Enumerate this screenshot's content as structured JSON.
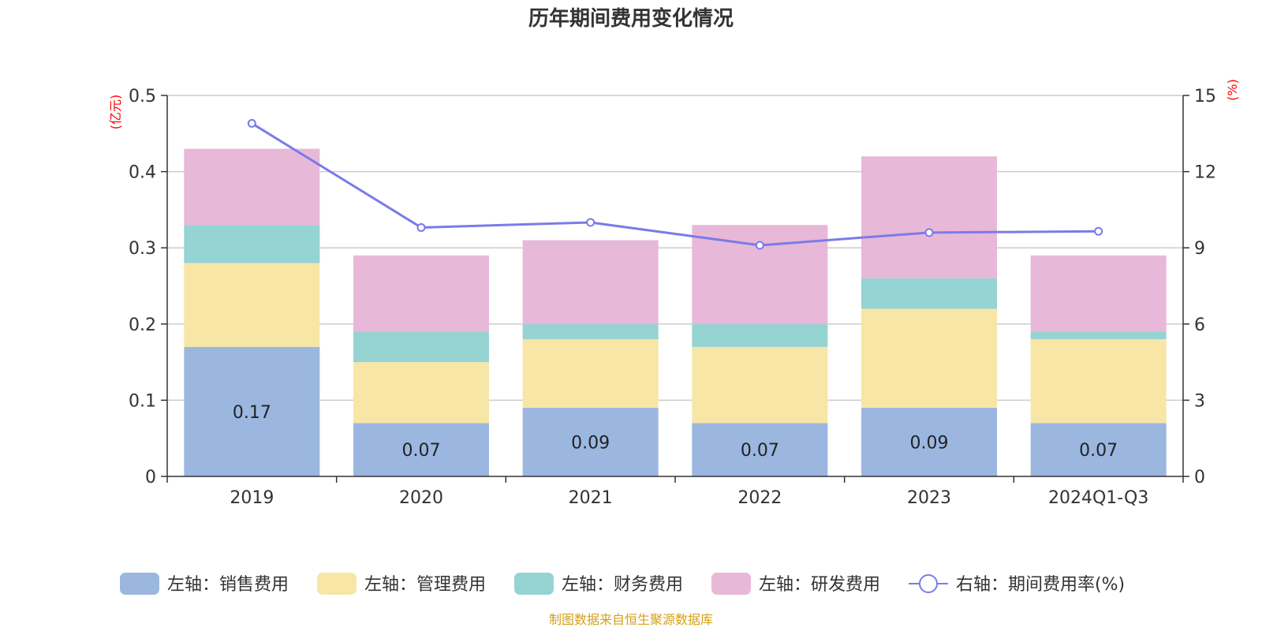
{
  "chart_data": {
    "type": "bar",
    "title": "历年期间费用变化情况",
    "categories": [
      "2019",
      "2020",
      "2021",
      "2022",
      "2023",
      "2024Q1-Q3"
    ],
    "left_axis": {
      "unit": "(亿元)",
      "ylim": [
        0,
        0.5
      ],
      "ticks": [
        "0",
        "0.1",
        "0.2",
        "0.3",
        "0.4",
        "0.5"
      ]
    },
    "right_axis": {
      "unit": "(%)",
      "ylim": [
        0,
        15
      ],
      "ticks": [
        "0",
        "3",
        "6",
        "9",
        "12",
        "15"
      ]
    },
    "series": [
      {
        "name": "左轴：销售费用",
        "axis": "left",
        "kind": "bar",
        "color": "#9bb7e0",
        "values": [
          0.17,
          0.07,
          0.09,
          0.07,
          0.09,
          0.07
        ],
        "labels": [
          "0.17",
          "0.07",
          "0.09",
          "0.07",
          "0.09",
          "0.07"
        ]
      },
      {
        "name": "左轴：管理费用",
        "axis": "left",
        "kind": "bar",
        "color": "#f7e6a6",
        "values": [
          0.11,
          0.08,
          0.09,
          0.1,
          0.13,
          0.11
        ]
      },
      {
        "name": "左轴：财务费用",
        "axis": "left",
        "kind": "bar",
        "color": "#96d3d3",
        "values": [
          0.05,
          0.04,
          0.02,
          0.03,
          0.04,
          0.01
        ]
      },
      {
        "name": "左轴：研发费用",
        "axis": "left",
        "kind": "bar",
        "color": "#e8b8d8",
        "values": [
          0.1,
          0.1,
          0.11,
          0.13,
          0.16,
          0.1
        ]
      },
      {
        "name": "右轴：期间费用率(%)",
        "axis": "right",
        "kind": "line",
        "color": "#7b7be8",
        "values": [
          13.9,
          9.8,
          10.0,
          9.1,
          9.6,
          9.65
        ]
      }
    ],
    "grid": true,
    "legend_position": "bottom",
    "source": "制图数据来自恒生聚源数据库"
  }
}
